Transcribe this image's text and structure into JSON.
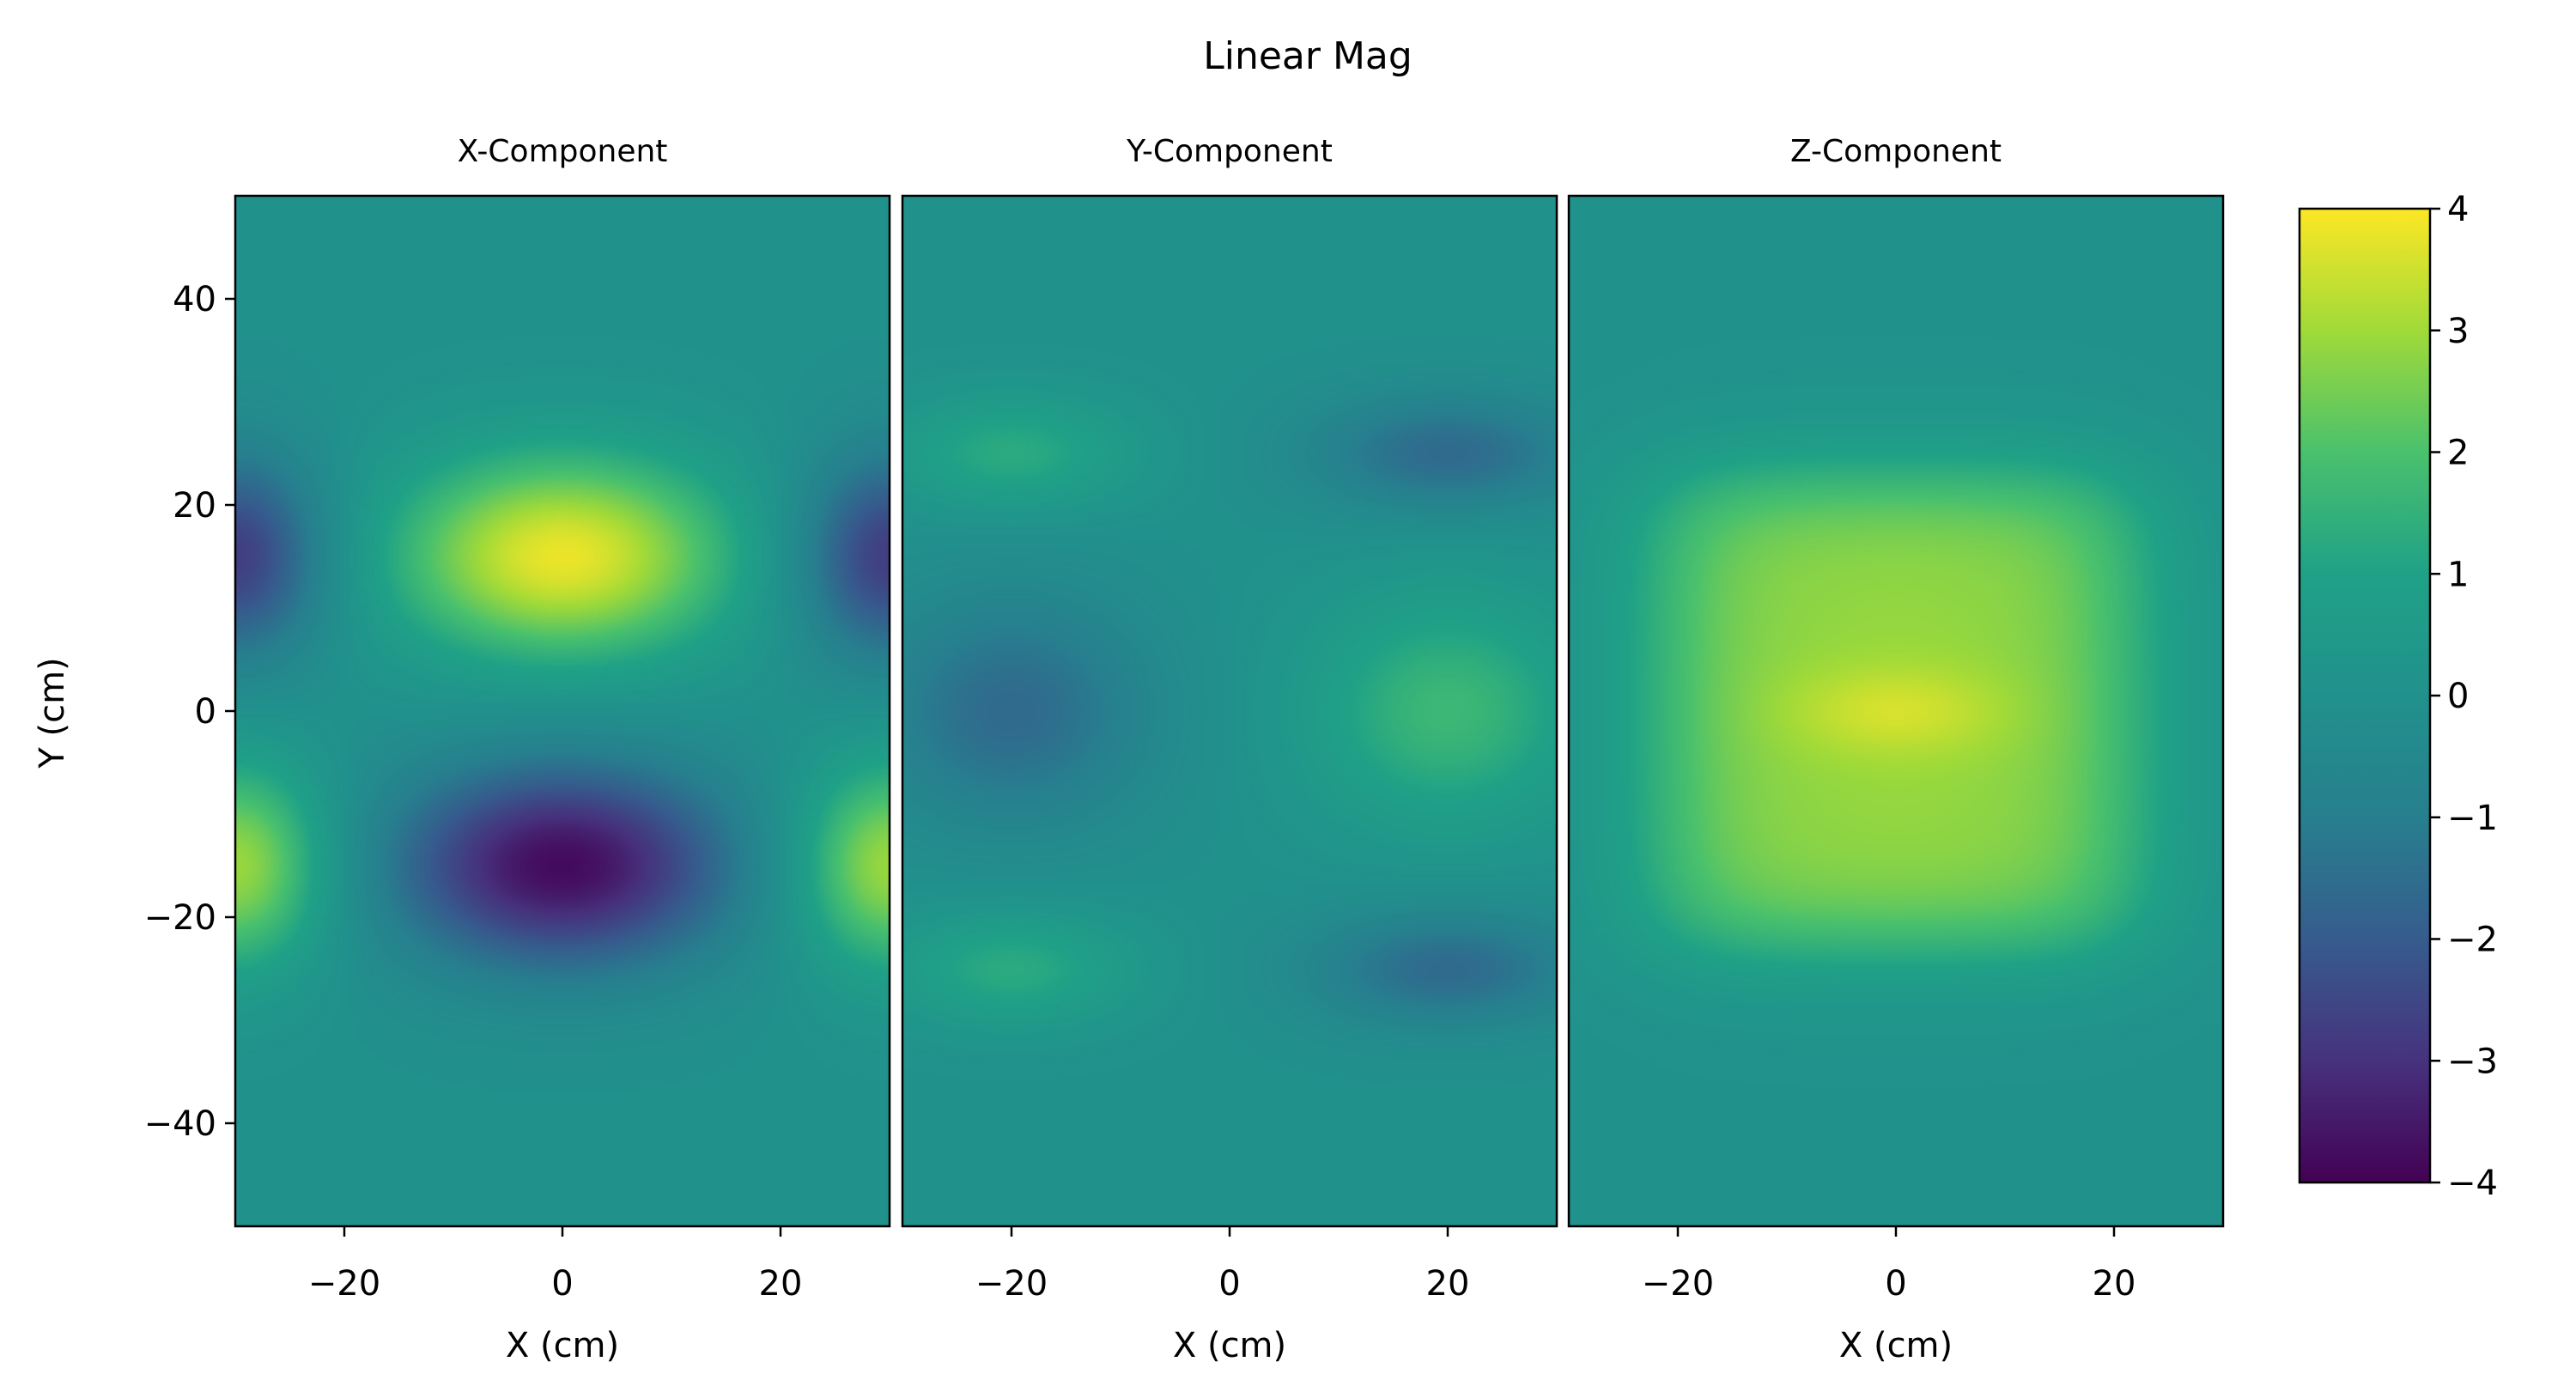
{
  "chart_data": {
    "type": "heatmap",
    "title": "Linear Mag",
    "colormap": "viridis",
    "colorbar": {
      "vmin": -4,
      "vmax": 4,
      "ticks": [
        4,
        3,
        2,
        1,
        0,
        -1,
        -2,
        -3,
        -4
      ],
      "tick_labels": [
        "4",
        "3",
        "2",
        "1",
        "0",
        "−1",
        "−2",
        "−3",
        "−4"
      ]
    },
    "xlim": [
      -30,
      30
    ],
    "ylim": [
      -50,
      50
    ],
    "x_ticks": [
      -20,
      0,
      20
    ],
    "x_tick_labels": [
      "−20",
      "0",
      "20"
    ],
    "y_ticks": [
      40,
      20,
      0,
      -20,
      -40
    ],
    "y_tick_labels": [
      "40",
      "20",
      "0",
      "−20",
      "−40"
    ],
    "xlabel": "X (cm)",
    "ylabel": "Y (cm)",
    "panels": [
      {
        "title": "X-Component",
        "background": 0,
        "features": [
          {
            "x": 0,
            "y": 15,
            "amp": 3.8,
            "sx": 11,
            "sy": 7
          },
          {
            "x": 0,
            "y": -15,
            "amp": -3.8,
            "sx": 11,
            "sy": 7
          },
          {
            "x": -30,
            "y": 15,
            "amp": -2.8,
            "sx": 6,
            "sy": 7
          },
          {
            "x": 30,
            "y": 15,
            "amp": -2.8,
            "sx": 6,
            "sy": 7
          },
          {
            "x": -30,
            "y": -15,
            "amp": 3.0,
            "sx": 6,
            "sy": 7
          },
          {
            "x": 30,
            "y": -15,
            "amp": 3.0,
            "sx": 6,
            "sy": 7
          }
        ]
      },
      {
        "title": "Y-Component",
        "background": 0,
        "features": [
          {
            "x": -20,
            "y": 25,
            "amp": 1.3,
            "sx": 8,
            "sy": 4
          },
          {
            "x": -20,
            "y": -25,
            "amp": 1.3,
            "sx": 8,
            "sy": 4
          },
          {
            "x": 20,
            "y": 25,
            "amp": -1.6,
            "sx": 9,
            "sy": 4
          },
          {
            "x": 20,
            "y": -25,
            "amp": -1.6,
            "sx": 9,
            "sy": 4
          },
          {
            "x": -20,
            "y": 0,
            "amp": -1.6,
            "sx": 9,
            "sy": 8
          },
          {
            "x": 20,
            "y": 0,
            "amp": 1.7,
            "sx": 9,
            "sy": 8
          }
        ]
      },
      {
        "title": "Z-Component",
        "background": 0,
        "plateau": {
          "amp": 2.9,
          "x_half": 22,
          "y_half": 23,
          "edge_x": 4,
          "edge_y": 3
        },
        "features": [
          {
            "x": 0,
            "y": 0,
            "amp": 0.7,
            "sx": 7,
            "sy": 3
          }
        ]
      }
    ]
  }
}
